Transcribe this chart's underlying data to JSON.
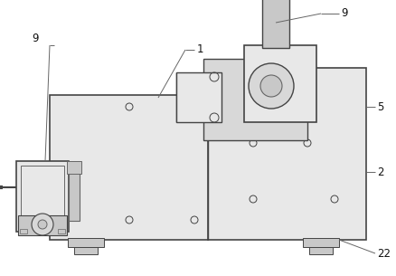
{
  "bg_color": "#ffffff",
  "lc": "#444444",
  "lc2": "#666666",
  "gray1": "#d8d8d8",
  "gray2": "#e8e8e8",
  "gray3": "#c8c8c8",
  "fig_width": 4.38,
  "fig_height": 3.05
}
